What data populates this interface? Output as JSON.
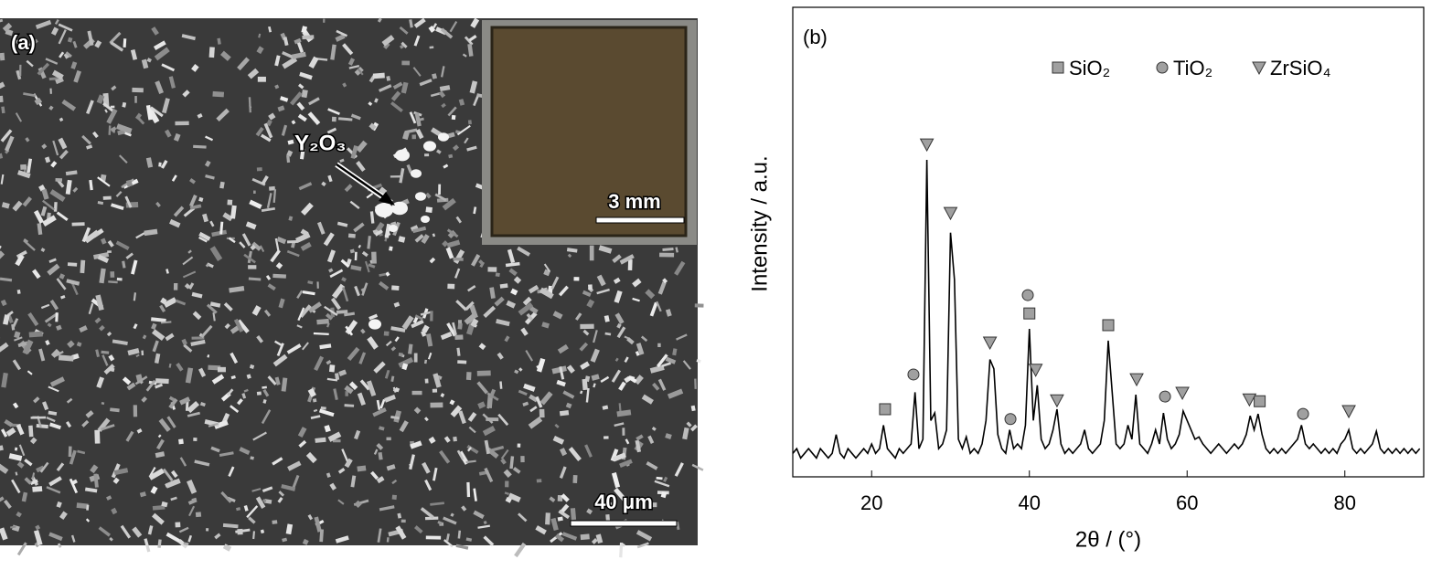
{
  "panel_a": {
    "label": "(a)",
    "particle_label": "Y₂O₃",
    "inset_scale": "3 mm",
    "scale": "40 μm"
  },
  "chart_data": {
    "type": "line",
    "label": "(b)",
    "xlabel": "2θ / (°)",
    "ylabel": "Intensity / a.u.",
    "color": "#000000",
    "xlim": [
      10,
      90
    ],
    "xticks": [
      20,
      40,
      60,
      80
    ],
    "ylim": [
      0,
      100
    ],
    "x": [
      10,
      10.5,
      11,
      11.5,
      12,
      12.5,
      13,
      13.5,
      14,
      14.5,
      15,
      15.5,
      16,
      16.5,
      17,
      17.5,
      18,
      18.5,
      19,
      19.5,
      20,
      20.5,
      21,
      21.5,
      22,
      22.5,
      23,
      23.5,
      24,
      24.5,
      25,
      25.5,
      26,
      26.5,
      27,
      27.5,
      28,
      28.5,
      29,
      29.5,
      30,
      30.5,
      31,
      31.5,
      32,
      32.5,
      33,
      33.5,
      34,
      34.5,
      35,
      35.5,
      36,
      36.5,
      37,
      37.5,
      38,
      38.5,
      39,
      39.5,
      40,
      40.5,
      41,
      41.5,
      42,
      42.5,
      43,
      43.5,
      44,
      44.5,
      45,
      45.5,
      46,
      46.5,
      47,
      47.5,
      48,
      48.5,
      49,
      49.5,
      50,
      50.5,
      51,
      51.5,
      52,
      52.5,
      53,
      53.5,
      54,
      54.5,
      55,
      55.5,
      56,
      56.5,
      57,
      57.5,
      58,
      58.5,
      59,
      59.5,
      60,
      60.5,
      61,
      61.5,
      62,
      62.5,
      63,
      63.5,
      64,
      64.5,
      65,
      65.5,
      66,
      66.5,
      67,
      67.5,
      68,
      68.5,
      69,
      69.5,
      70,
      70.5,
      71,
      71.5,
      72,
      72.5,
      73,
      73.5,
      74,
      74.5,
      75,
      75.5,
      76,
      76.5,
      77,
      77.5,
      78,
      78.5,
      79,
      79.5,
      80,
      80.5,
      81,
      81.5,
      82,
      82.5,
      83,
      83.5,
      84,
      84.5,
      85,
      85.5,
      86,
      86.5,
      87,
      87.5,
      88,
      88.5,
      89,
      89.5
    ],
    "values": [
      5,
      6,
      4,
      5,
      6,
      5,
      4,
      6,
      5,
      4,
      5,
      9,
      5,
      4,
      6,
      5,
      4,
      5,
      6,
      5,
      7,
      5,
      6,
      11,
      6,
      5,
      4,
      6,
      5,
      6,
      7,
      18,
      6,
      8,
      67.5,
      12,
      13.6,
      6,
      7,
      10,
      52,
      42,
      8,
      6,
      8.5,
      5,
      6,
      5,
      7,
      12,
      25,
      23,
      9,
      6,
      5,
      10,
      6,
      7,
      6,
      11,
      31.5,
      12,
      19.5,
      8,
      6,
      7,
      10,
      14.4,
      7,
      5,
      6,
      5,
      6,
      7,
      10,
      6,
      5,
      6,
      7,
      12,
      29,
      18,
      7,
      6,
      7,
      11,
      8,
      17.5,
      7,
      6,
      5,
      7,
      10,
      7,
      13.6,
      8,
      6,
      7,
      9,
      14,
      12,
      10,
      8,
      8.5,
      7,
      6,
      5,
      6,
      7,
      6,
      5,
      6,
      7,
      6,
      7,
      9,
      13,
      10,
      13.4,
      9,
      6,
      5,
      6,
      5,
      6,
      5,
      6,
      7,
      8,
      11,
      7,
      6,
      7,
      6,
      5,
      6,
      5,
      6,
      5,
      7,
      8,
      10,
      6,
      5,
      6,
      5,
      6,
      7,
      9.7,
      6,
      5,
      6,
      5,
      6,
      5,
      6,
      5,
      6,
      5,
      6
    ],
    "phases": [
      {
        "name": "SiO₂",
        "shape": "square",
        "color": "#a0a0a0",
        "x": [
          21.7,
          40,
          50,
          69.2
        ],
        "y": [
          14.4,
          34.8,
          32.3,
          16.1
        ]
      },
      {
        "name": "TiO₂",
        "shape": "circle",
        "color": "#a0a0a0",
        "x": [
          25.3,
          37.6,
          39.8,
          57.2,
          74.7
        ],
        "y": [
          21.8,
          12.3,
          38.7,
          17.1,
          13.4
        ]
      },
      {
        "name": "ZrSiO₄",
        "shape": "triangle",
        "color": "#a0a0a0",
        "x": [
          27,
          30,
          35,
          40.8,
          43.5,
          53.6,
          59.4,
          67.9,
          80.5
        ],
        "y": [
          70.8,
          56.2,
          28.6,
          22.8,
          16.3,
          20.8,
          17.9,
          16.5,
          14
        ]
      }
    ]
  }
}
